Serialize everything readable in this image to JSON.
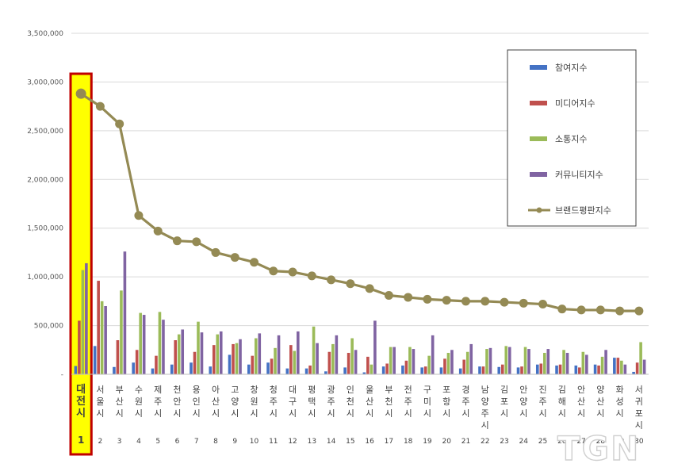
{
  "chart_data": {
    "type": "bar",
    "title": "",
    "xlabel": "",
    "ylabel": "",
    "ylim": [
      0,
      3500000
    ],
    "yticks": [
      0,
      500000,
      1000000,
      1500000,
      2000000,
      2500000,
      3000000,
      3500000
    ],
    "ytick_labels": [
      "-",
      "500,000",
      "1,000,000",
      "1,500,000",
      "2,000,000",
      "2,500,000",
      "3,000,000",
      "3,500,000"
    ],
    "grid": true,
    "legend_position": "top-right",
    "highlight_index": 0,
    "categories": [
      "대전시",
      "서울시",
      "부산시",
      "수원시",
      "제주시",
      "천안시",
      "용인시",
      "아산시",
      "고양시",
      "창원시",
      "청주시",
      "대구시",
      "평택시",
      "광주시",
      "인천시",
      "울산시",
      "부천시",
      "전주시",
      "구미시",
      "포항시",
      "경주시",
      "남양주시",
      "김포시",
      "안양시",
      "진주시",
      "김해시",
      "안산시",
      "양산시",
      "화성시",
      "서귀포시"
    ],
    "ranks": [
      "1",
      "2",
      "3",
      "4",
      "5",
      "6",
      "7",
      "8",
      "9",
      "10",
      "11",
      "12",
      "13",
      "14",
      "15",
      "16",
      "17",
      "18",
      "19",
      "20",
      "21",
      "22",
      "23",
      "24",
      "25",
      "26",
      "27",
      "28",
      "29",
      "30"
    ],
    "series": [
      {
        "name": "참여지수",
        "kind": "bar",
        "color": "#4472C4",
        "values": [
          85000,
          290000,
          75000,
          120000,
          60000,
          100000,
          120000,
          80000,
          200000,
          100000,
          120000,
          60000,
          60000,
          30000,
          70000,
          20000,
          80000,
          90000,
          70000,
          70000,
          60000,
          80000,
          75000,
          70000,
          100000,
          90000,
          90000,
          100000,
          170000,
          25000
        ]
      },
      {
        "name": "미디어지수",
        "kind": "bar",
        "color": "#C0504D",
        "values": [
          550000,
          960000,
          350000,
          250000,
          190000,
          350000,
          230000,
          300000,
          310000,
          190000,
          160000,
          300000,
          90000,
          230000,
          220000,
          180000,
          110000,
          140000,
          80000,
          160000,
          150000,
          80000,
          100000,
          80000,
          110000,
          100000,
          70000,
          90000,
          170000,
          120000
        ]
      },
      {
        "name": "소통지수",
        "kind": "bar",
        "color": "#9BBB59",
        "values": [
          1070000,
          750000,
          860000,
          630000,
          640000,
          410000,
          540000,
          410000,
          320000,
          370000,
          270000,
          240000,
          490000,
          310000,
          370000,
          100000,
          280000,
          280000,
          190000,
          220000,
          230000,
          260000,
          290000,
          280000,
          220000,
          250000,
          230000,
          180000,
          140000,
          330000
        ]
      },
      {
        "name": "커뮤니티지수",
        "kind": "bar",
        "color": "#8064A2",
        "values": [
          1140000,
          700000,
          1260000,
          610000,
          560000,
          460000,
          430000,
          440000,
          360000,
          420000,
          400000,
          440000,
          320000,
          400000,
          250000,
          550000,
          280000,
          260000,
          400000,
          250000,
          310000,
          270000,
          280000,
          260000,
          260000,
          220000,
          200000,
          250000,
          100000,
          150000
        ]
      },
      {
        "name": "브랜드평판지수",
        "kind": "line",
        "color": "#948A54",
        "values": [
          2880000,
          2750000,
          2570000,
          1630000,
          1470000,
          1370000,
          1360000,
          1250000,
          1200000,
          1150000,
          1060000,
          1050000,
          1010000,
          970000,
          930000,
          880000,
          810000,
          790000,
          770000,
          760000,
          750000,
          750000,
          740000,
          730000,
          720000,
          670000,
          660000,
          660000,
          650000,
          650000
        ]
      }
    ]
  },
  "watermark": {
    "text": "TGN"
  }
}
